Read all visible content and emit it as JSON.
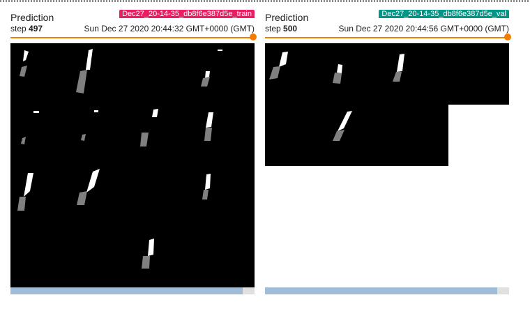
{
  "cards": [
    {
      "title": "Prediction",
      "step_label": "step",
      "step_value": "497",
      "run_tag": "Dec27_20-14-35_db8f6e387d5e_train",
      "tag_color": "#e91e63",
      "timestamp": "Sun Dec 27 2020 20:44:32 GMT+0000 (GMT)",
      "image_icon": "segmentation-mask-grid",
      "slider_fraction": 1.0,
      "scroll_fraction": 0.95
    },
    {
      "title": "Prediction",
      "step_label": "step",
      "step_value": "500",
      "run_tag": "Dec27_20-14-35_db8f6e387d5e_val",
      "tag_color": "#009688",
      "timestamp": "Sun Dec 27 2020 20:44:56 GMT+0000 (GMT)",
      "image_icon": "segmentation-mask-grid",
      "slider_fraction": 1.0,
      "scroll_fraction": 0.95
    }
  ],
  "colors": {
    "accent": "#f57c00",
    "mask_background": "#000000",
    "mask_foreground": "#ffffff",
    "mask_secondary": "#808080",
    "scroll_thumb": "#a1bcd6"
  }
}
